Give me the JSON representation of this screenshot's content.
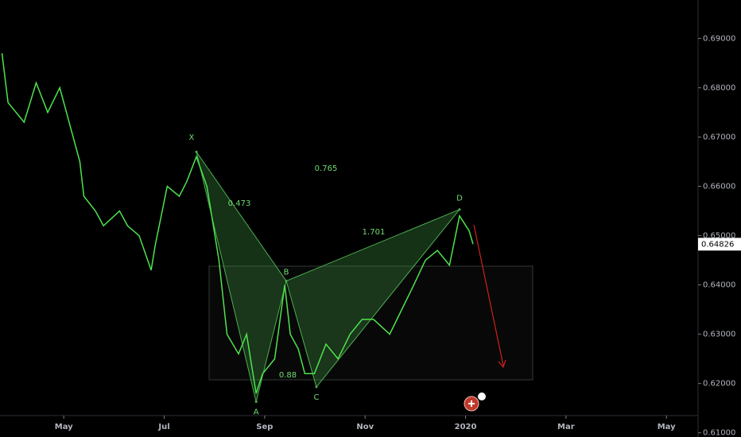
{
  "chart_data": {
    "type": "line",
    "x": [
      3.77,
      3.89,
      4.21,
      4.45,
      4.68,
      4.92,
      5.16,
      5.32,
      5.4,
      5.63,
      5.79,
      6.11,
      6.27,
      6.5,
      6.74,
      6.82,
      7.06,
      7.3,
      7.45,
      7.64,
      7.85,
      8.09,
      8.25,
      8.48,
      8.64,
      8.83,
      8.96,
      9.2,
      9.4,
      9.51,
      9.67,
      9.8,
      9.99,
      10.22,
      10.46,
      10.7,
      10.94,
      11.17,
      11.49,
      11.73,
      11.97,
      12.2,
      12.44,
      12.68,
      12.88,
      13.07,
      13.15
    ],
    "series": [
      {
        "color": "#4ee34e",
        "values": [
          0.687,
          0.677,
          0.673,
          0.681,
          0.675,
          0.68,
          0.671,
          0.665,
          0.658,
          0.655,
          0.652,
          0.655,
          0.652,
          0.65,
          0.643,
          0.648,
          0.66,
          0.658,
          0.661,
          0.666,
          0.66,
          0.645,
          0.63,
          0.626,
          0.63,
          0.618,
          0.622,
          0.625,
          0.64,
          0.63,
          0.627,
          0.622,
          0.622,
          0.628,
          0.625,
          0.63,
          0.633,
          0.633,
          0.63,
          0.635,
          0.64,
          0.645,
          0.647,
          0.644,
          0.654,
          0.651,
          0.64826
        ]
      }
    ],
    "xlim": [
      3.73,
      17.63
    ],
    "ylim": [
      0.6135,
      0.6978
    ],
    "xticks": [
      {
        "value": 5,
        "label": "May"
      },
      {
        "value": 7,
        "label": "Jul"
      },
      {
        "value": 9,
        "label": "Sep"
      },
      {
        "value": 11,
        "label": "Nov"
      },
      {
        "value": 13,
        "label": "2020"
      },
      {
        "value": 15,
        "label": "Mar"
      },
      {
        "value": 17,
        "label": "May"
      }
    ],
    "yticks": [
      {
        "value": 0.69,
        "label": "0.69000"
      },
      {
        "value": 0.68,
        "label": "0.68000"
      },
      {
        "value": 0.67,
        "label": "0.67000"
      },
      {
        "value": 0.66,
        "label": "0.66000"
      },
      {
        "value": 0.65,
        "label": "0.65000"
      },
      {
        "value": 0.64,
        "label": "0.64000"
      },
      {
        "value": 0.63,
        "label": "0.63000"
      },
      {
        "value": 0.62,
        "label": "0.62000"
      },
      {
        "value": 0.61,
        "label": "0.61000"
      }
    ],
    "last_price": 0.64826,
    "pattern": [
      {
        "label": "X",
        "x": 7.64,
        "y": 0.667
      },
      {
        "label": "A",
        "x": 8.83,
        "y": 0.6163
      },
      {
        "label": "B",
        "x": 9.43,
        "y": 0.6408
      },
      {
        "label": "C",
        "x": 10.03,
        "y": 0.6193
      },
      {
        "label": "D",
        "x": 12.88,
        "y": 0.6553
      }
    ],
    "ratios": [
      0.473,
      0.765,
      1.701,
      0.88
    ]
  }
}
